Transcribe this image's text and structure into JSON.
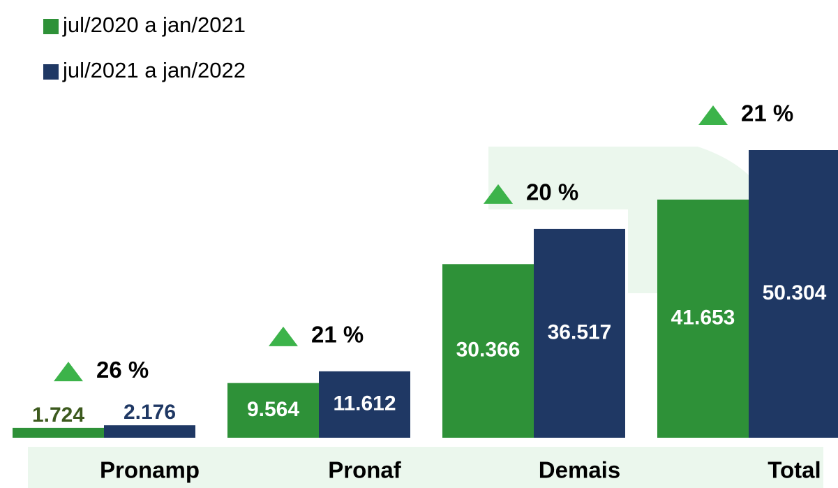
{
  "chart_data": {
    "type": "bar",
    "categories": [
      "Pronamp",
      "Pronaf",
      "Demais",
      "Total"
    ],
    "series": [
      {
        "name": "jul/2020 a jan/2021",
        "color": "#2e9138",
        "label_color": "#3d5a1e",
        "values": [
          1724,
          9564,
          30366,
          41653
        ],
        "value_labels": [
          "1.724",
          "9.564",
          "30.366",
          "41.653"
        ]
      },
      {
        "name": "jul/2021 a jan/2022",
        "color": "#1f3864",
        "label_color": "#1f3864",
        "values": [
          2176,
          11612,
          36517,
          50304
        ],
        "value_labels": [
          "2.176",
          "11.612",
          "36.517",
          "50.304"
        ]
      }
    ],
    "annotations": [
      "26 %",
      "21 %",
      "20 %",
      "21 %"
    ],
    "annotation_color": "#3cb34a",
    "legend": "top-left"
  }
}
